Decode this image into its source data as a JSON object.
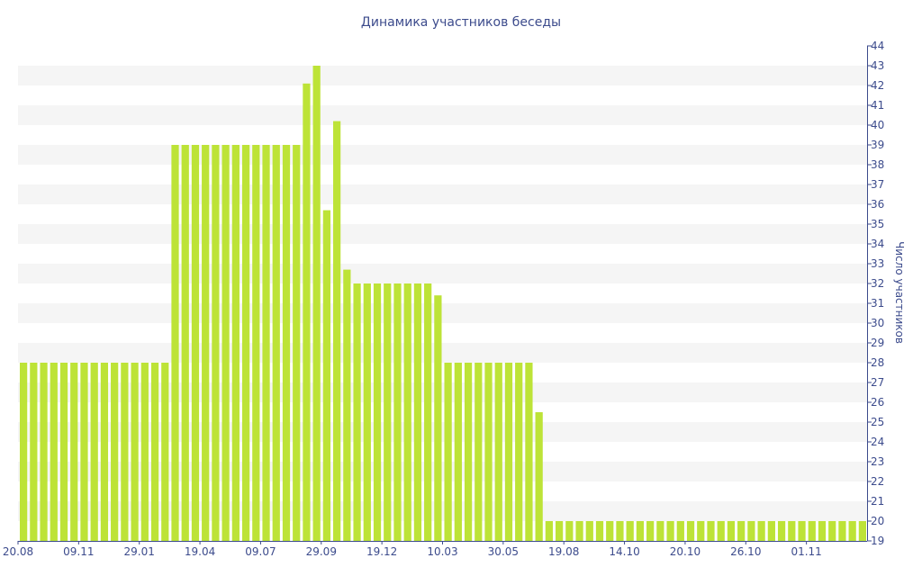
{
  "chart_data": {
    "type": "bar",
    "title": "Динамика участников беседы",
    "xlabel": "",
    "ylabel": "Число участников",
    "ylim": [
      19,
      44
    ],
    "y_axis_position": "right",
    "grid": "alternating horizontal bands",
    "bar_color": "#bde337",
    "x_tick_labels": [
      "20.08",
      "09.11",
      "29.01",
      "19.04",
      "09.07",
      "29.09",
      "19.12",
      "10.03",
      "30.05",
      "19.08",
      "14.10",
      "20.10",
      "26.10",
      "01.11"
    ],
    "series": [
      {
        "values": [
          28,
          28,
          28,
          28,
          28,
          28,
          28,
          28,
          28,
          28,
          28,
          28,
          28,
          28,
          28,
          39,
          39,
          39,
          39,
          39,
          39,
          39,
          39,
          39,
          39,
          39,
          39,
          39,
          42.1,
          43,
          35.7,
          40.2,
          32.7,
          32,
          32,
          32,
          32,
          32,
          32,
          32,
          32,
          31.4,
          28,
          28,
          28,
          28,
          28,
          28,
          28,
          28,
          28,
          25.5,
          20,
          20,
          20,
          20,
          20,
          20,
          20,
          20,
          20,
          20,
          20,
          20,
          20,
          20,
          20,
          20,
          20,
          20,
          20,
          20,
          20,
          20,
          20,
          20,
          20,
          20,
          20,
          20,
          20,
          20,
          20,
          20
        ]
      }
    ]
  }
}
